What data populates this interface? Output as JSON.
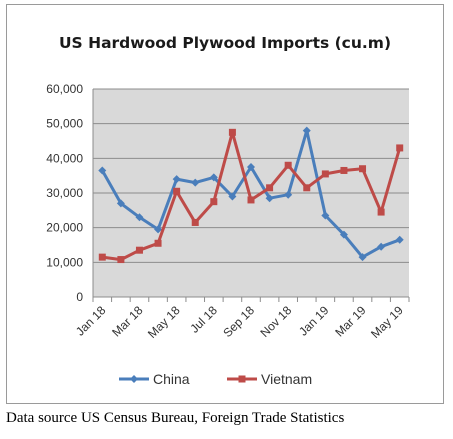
{
  "chart_data": {
    "type": "line",
    "title": "US Hardwood Plywood Imports (cu.m)",
    "xlabel": "",
    "ylabel": "",
    "ylim": [
      0,
      60000
    ],
    "yticks": [
      "0",
      "10,000",
      "20,000",
      "30,000",
      "40,000",
      "50,000",
      "60,000"
    ],
    "categories": [
      "Jan 18",
      "Feb 18",
      "Mar 18",
      "Apr 18",
      "May 18",
      "Jun 18",
      "Jul 18",
      "Aug 18",
      "Sep 18",
      "Oct 18",
      "Nov 18",
      "Dec 18",
      "Jan 19",
      "Feb 19",
      "Mar 19",
      "Apr 19",
      "May 19"
    ],
    "tick_labels": [
      "Jan 18",
      "",
      "Mar 18",
      "",
      "May 18",
      "",
      "Jul 18",
      "",
      "Sep 18",
      "",
      "Nov 18",
      "",
      "Jan 19",
      "",
      "Mar 19",
      "",
      "May 19"
    ],
    "grid": true,
    "legend_position": "bottom",
    "plot_background": "#d9d9d9",
    "series": [
      {
        "name": "China",
        "color": "#4a7ebb",
        "marker": "diamond",
        "values": [
          36500,
          27000,
          23000,
          19500,
          34000,
          33000,
          34500,
          29000,
          37500,
          28500,
          29500,
          48000,
          23500,
          18000,
          11500,
          14500,
          16500
        ]
      },
      {
        "name": "Vietnam",
        "color": "#be4b48",
        "marker": "square",
        "values": [
          11500,
          10800,
          13500,
          15500,
          30500,
          21500,
          27500,
          47500,
          28000,
          31500,
          38000,
          31500,
          35500,
          36500,
          37000,
          24500,
          43000
        ]
      }
    ]
  },
  "source_note": "Data source US Census Bureau, Foreign Trade Statistics"
}
